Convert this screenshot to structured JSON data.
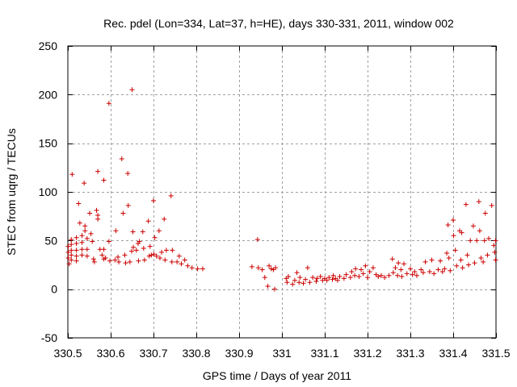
{
  "chart_data": {
    "type": "scatter",
    "title": "Rec. pdel (Lon=334, Lat=37, h=HE), days 330-331, 2011, window 002",
    "xlabel": "GPS time / Days of year 2011",
    "ylabel": "STEC from uqrg / TECUs",
    "xlim": [
      330.5,
      331.5
    ],
    "ylim": [
      -50,
      250
    ],
    "xticks": [
      330.5,
      330.6,
      330.7,
      330.8,
      330.9,
      331,
      331.1,
      331.2,
      331.3,
      331.4,
      331.5
    ],
    "xtick_labels": [
      "330.5",
      "330.6",
      "330.7",
      "330.8",
      "330.9",
      "331",
      "331.1",
      "331.2",
      "331.3",
      "331.4",
      "331.5"
    ],
    "yticks": [
      -50,
      0,
      50,
      100,
      150,
      200,
      250
    ],
    "ytick_labels": [
      "-50",
      "0",
      "50",
      "100",
      "150",
      "200",
      "250"
    ],
    "grid": true,
    "marker": "+",
    "color": "#cc0000",
    "series": [
      {
        "name": "STEC",
        "points": [
          [
            330.501,
            44
          ],
          [
            330.501,
            38
          ],
          [
            330.501,
            32
          ],
          [
            330.503,
            26
          ],
          [
            330.508,
            51
          ],
          [
            330.508,
            46
          ],
          [
            330.508,
            40
          ],
          [
            330.508,
            35
          ],
          [
            330.508,
            30
          ],
          [
            330.51,
            118
          ],
          [
            330.52,
            53
          ],
          [
            330.52,
            47
          ],
          [
            330.52,
            40
          ],
          [
            330.52,
            34
          ],
          [
            330.52,
            29
          ],
          [
            330.525,
            88
          ],
          [
            330.528,
            68
          ],
          [
            330.533,
            55
          ],
          [
            330.533,
            48
          ],
          [
            330.533,
            41
          ],
          [
            330.533,
            35
          ],
          [
            330.538,
            109
          ],
          [
            330.54,
            65
          ],
          [
            330.54,
            60
          ],
          [
            330.545,
            52
          ],
          [
            330.545,
            41
          ],
          [
            330.545,
            34
          ],
          [
            330.551,
            78
          ],
          [
            330.554,
            57
          ],
          [
            330.557,
            49
          ],
          [
            330.56,
            31
          ],
          [
            330.562,
            28
          ],
          [
            330.567,
            81
          ],
          [
            330.57,
            121
          ],
          [
            330.57,
            76
          ],
          [
            330.57,
            72
          ],
          [
            330.575,
            41
          ],
          [
            330.58,
            35
          ],
          [
            330.584,
            112
          ],
          [
            330.584,
            41
          ],
          [
            330.584,
            31
          ],
          [
            330.588,
            32
          ],
          [
            330.596,
            191
          ],
          [
            330.596,
            49
          ],
          [
            330.598,
            29
          ],
          [
            330.61,
            30
          ],
          [
            330.612,
            60
          ],
          [
            330.617,
            33
          ],
          [
            330.619,
            28
          ],
          [
            330.626,
            134
          ],
          [
            330.629,
            78
          ],
          [
            330.633,
            35
          ],
          [
            330.635,
            27
          ],
          [
            330.64,
            119
          ],
          [
            330.641,
            86
          ],
          [
            330.645,
            28
          ],
          [
            330.649,
            39
          ],
          [
            330.65,
            205
          ],
          [
            330.652,
            59
          ],
          [
            330.653,
            43
          ],
          [
            330.66,
            40
          ],
          [
            330.664,
            47
          ],
          [
            330.665,
            29
          ],
          [
            330.667,
            49
          ],
          [
            330.675,
            59
          ],
          [
            330.677,
            42
          ],
          [
            330.679,
            30
          ],
          [
            330.688,
            70
          ],
          [
            330.69,
            34
          ],
          [
            330.692,
            44
          ],
          [
            330.695,
            35
          ],
          [
            330.7,
            91
          ],
          [
            330.701,
            36
          ],
          [
            330.703,
            53
          ],
          [
            330.707,
            34
          ],
          [
            330.713,
            60
          ],
          [
            330.715,
            32
          ],
          [
            330.719,
            38
          ],
          [
            330.725,
            72
          ],
          [
            330.727,
            30
          ],
          [
            330.73,
            40
          ],
          [
            330.741,
            96
          ],
          [
            330.743,
            28
          ],
          [
            330.744,
            40
          ],
          [
            330.755,
            28
          ],
          [
            330.76,
            34
          ],
          [
            330.765,
            26
          ],
          [
            330.773,
            30
          ],
          [
            330.78,
            24
          ],
          [
            330.79,
            22
          ],
          [
            330.803,
            21
          ],
          [
            330.815,
            21
          ],
          [
            330.93,
            23
          ],
          [
            330.943,
            51
          ],
          [
            330.945,
            22
          ],
          [
            330.954,
            20
          ],
          [
            330.96,
            12
          ],
          [
            330.967,
            3
          ],
          [
            330.97,
            24
          ],
          [
            330.975,
            21
          ],
          [
            330.98,
            20
          ],
          [
            330.983,
            0
          ],
          [
            330.985,
            22
          ],
          [
            331.01,
            11
          ],
          [
            331.012,
            7
          ],
          [
            331.015,
            13
          ],
          [
            331.025,
            5
          ],
          [
            331.03,
            9
          ],
          [
            331.035,
            17
          ],
          [
            331.04,
            7
          ],
          [
            331.042,
            12
          ],
          [
            331.05,
            6
          ],
          [
            331.055,
            10
          ],
          [
            331.06,
            22
          ],
          [
            331.065,
            7
          ],
          [
            331.072,
            12
          ],
          [
            331.08,
            8
          ],
          [
            331.082,
            11
          ],
          [
            331.09,
            13
          ],
          [
            331.095,
            9
          ],
          [
            331.1,
            11
          ],
          [
            331.105,
            9
          ],
          [
            331.11,
            12
          ],
          [
            331.118,
            10
          ],
          [
            331.12,
            14
          ],
          [
            331.125,
            11
          ],
          [
            331.13,
            9
          ],
          [
            331.135,
            13
          ],
          [
            331.145,
            11
          ],
          [
            331.15,
            15
          ],
          [
            331.16,
            12
          ],
          [
            331.163,
            18
          ],
          [
            331.17,
            14
          ],
          [
            331.172,
            21
          ],
          [
            331.18,
            13
          ],
          [
            331.185,
            20
          ],
          [
            331.19,
            16
          ],
          [
            331.195,
            24
          ],
          [
            331.2,
            12
          ],
          [
            331.205,
            18
          ],
          [
            331.213,
            22
          ],
          [
            331.22,
            15
          ],
          [
            331.225,
            13
          ],
          [
            331.232,
            14
          ],
          [
            331.24,
            12
          ],
          [
            331.25,
            14
          ],
          [
            331.258,
            31
          ],
          [
            331.26,
            17
          ],
          [
            331.265,
            22
          ],
          [
            331.27,
            14
          ],
          [
            331.272,
            27
          ],
          [
            331.278,
            20
          ],
          [
            331.28,
            13
          ],
          [
            331.285,
            26
          ],
          [
            331.292,
            16
          ],
          [
            331.3,
            21
          ],
          [
            331.305,
            15
          ],
          [
            331.31,
            18
          ],
          [
            331.315,
            14
          ],
          [
            331.325,
            20
          ],
          [
            331.33,
            17
          ],
          [
            331.335,
            28
          ],
          [
            331.345,
            18
          ],
          [
            331.35,
            30
          ],
          [
            331.355,
            16
          ],
          [
            331.365,
            20
          ],
          [
            331.37,
            29
          ],
          [
            331.375,
            18
          ],
          [
            331.38,
            21
          ],
          [
            331.385,
            37
          ],
          [
            331.388,
            66
          ],
          [
            331.39,
            32
          ],
          [
            331.393,
            19
          ],
          [
            331.4,
            71
          ],
          [
            331.401,
            55
          ],
          [
            331.405,
            40
          ],
          [
            331.408,
            24
          ],
          [
            331.415,
            60
          ],
          [
            331.418,
            30
          ],
          [
            331.42,
            58
          ],
          [
            331.422,
            22
          ],
          [
            331.43,
            87
          ],
          [
            331.433,
            35
          ],
          [
            331.436,
            25
          ],
          [
            331.44,
            50
          ],
          [
            331.447,
            65
          ],
          [
            331.45,
            27
          ],
          [
            331.455,
            50
          ],
          [
            331.46,
            90
          ],
          [
            331.462,
            60
          ],
          [
            331.465,
            32
          ],
          [
            331.47,
            28
          ],
          [
            331.473,
            50
          ],
          [
            331.475,
            78
          ],
          [
            331.48,
            35
          ],
          [
            331.483,
            52
          ],
          [
            331.49,
            86
          ],
          [
            331.495,
            45
          ],
          [
            331.497,
            38
          ],
          [
            331.499,
            30
          ],
          [
            331.499,
            50
          ]
        ]
      }
    ]
  }
}
